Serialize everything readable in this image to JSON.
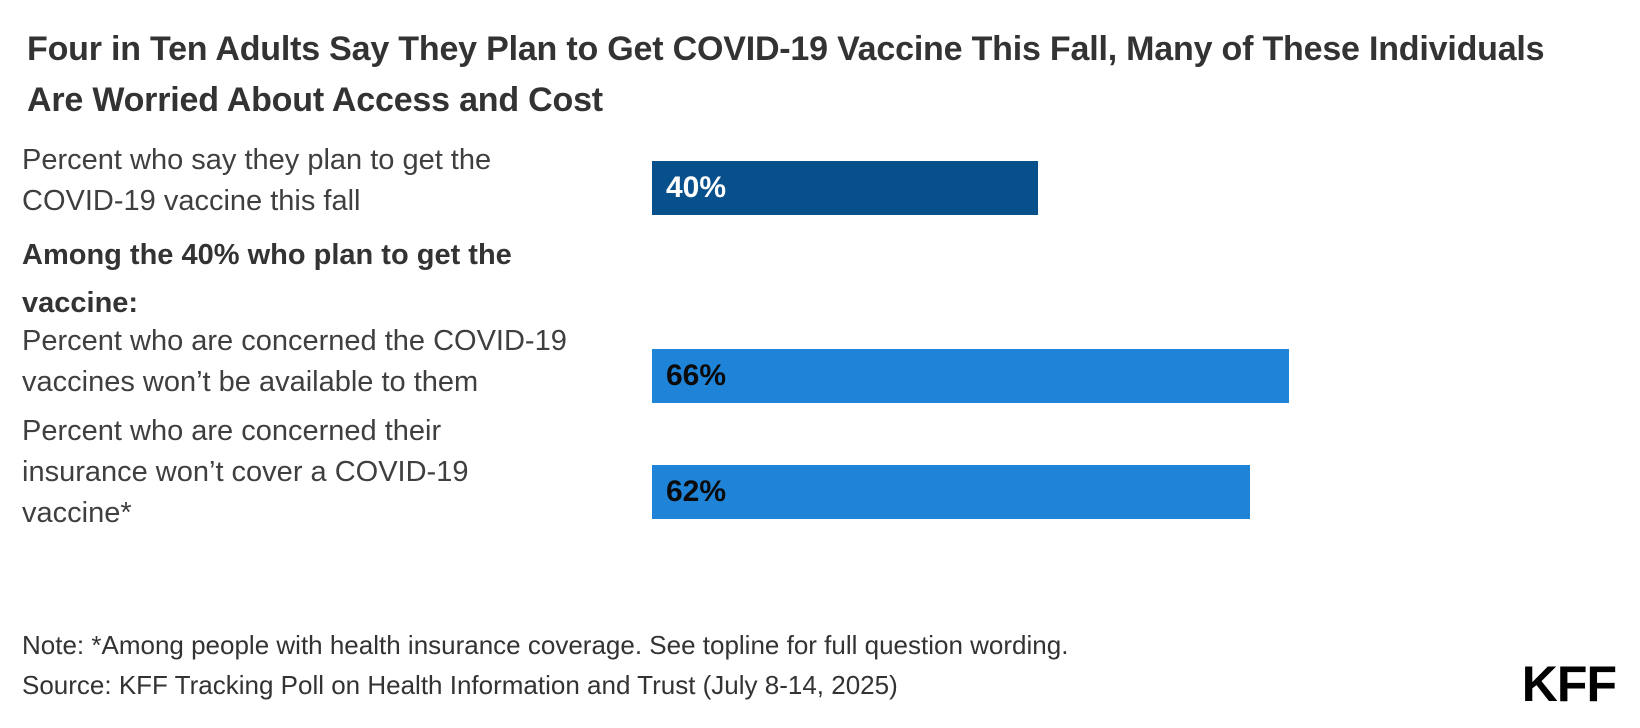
{
  "title": "Four in Ten Adults Say They Plan to Get COVID-19 Vaccine This Fall, Many of These Individuals Are Worried About Access and Cost",
  "chart_data": {
    "type": "bar",
    "orientation": "horizontal",
    "unit": "percent",
    "xlim": [
      0,
      100
    ],
    "axes_visible": false,
    "grid": false,
    "legend": "none",
    "rows": [
      {
        "kind": "bar",
        "label": "Percent who say they plan to get the COVID-19 vaccine this fall",
        "value": 40,
        "value_label": "40%",
        "bar_color": "#08508C",
        "value_label_color": "#FFFFFF"
      },
      {
        "kind": "subhead",
        "label": "Among the 40% who plan to get the vaccine:"
      },
      {
        "kind": "bar",
        "label": "Percent who are concerned the COVID-19 vaccines won’t be available to them",
        "value": 66,
        "value_label": "66%",
        "bar_color": "#1F83D7",
        "value_label_color": "#0B0B0B"
      },
      {
        "kind": "bar",
        "label": "Percent who are concerned their insurance won’t cover a COVID-19 vaccine*",
        "value": 62,
        "value_label": "62%",
        "bar_color": "#1F83D7",
        "value_label_color": "#0B0B0B"
      }
    ]
  },
  "note": "Note: *Among people with health insurance coverage. See topline for full question wording.",
  "source": "Source: KFF Tracking Poll on Health Information and Trust (July 8-14, 2025)",
  "logo_text": "KFF",
  "colors": {
    "navy": "#08508C",
    "blue": "#1F83D7",
    "title_text": "#333333",
    "body_text": "#3F3F3F",
    "logo_text": "#000000",
    "background": "#FFFFFF"
  }
}
